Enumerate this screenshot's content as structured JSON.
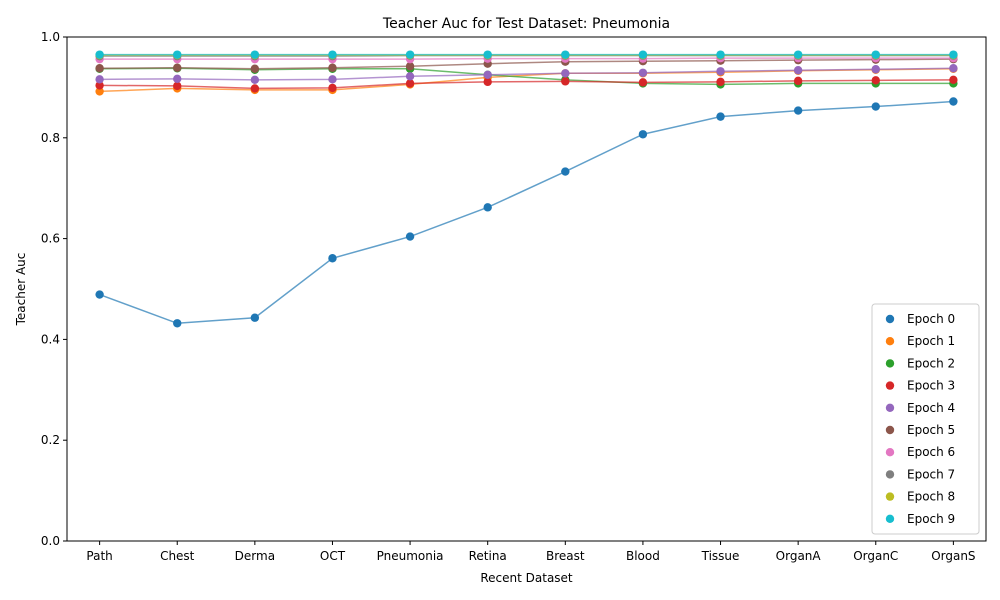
{
  "chart_data": {
    "type": "line",
    "title": "Teacher Auc for Test Dataset: Pneumonia",
    "xlabel": "Recent Dataset",
    "ylabel": "Teacher Auc",
    "ylim": [
      0,
      1.0
    ],
    "yticks": [
      "0.0",
      "0.2",
      "0.4",
      "0.6",
      "0.8",
      "1.0"
    ],
    "categories": [
      "Path",
      "Chest",
      "Derma",
      "OCT",
      "Pneumonia",
      "Retina",
      "Breast",
      "Blood",
      "Tissue",
      "OrganA",
      "OrganC",
      "OrganS"
    ],
    "grid": false,
    "legend_position": "lower-right",
    "series": [
      {
        "name": "Epoch 0",
        "color": "#1f77b4",
        "values": [
          0.489,
          0.432,
          0.443,
          0.561,
          0.604,
          0.662,
          0.733,
          0.807,
          0.842,
          0.854,
          0.862,
          0.872
        ]
      },
      {
        "name": "Epoch 1",
        "color": "#ff7f0e",
        "values": [
          0.892,
          0.898,
          0.895,
          0.895,
          0.906,
          0.92,
          0.928,
          0.928,
          0.93,
          0.933,
          0.935,
          0.937
        ]
      },
      {
        "name": "Epoch 2",
        "color": "#2ca02c",
        "values": [
          0.937,
          0.938,
          0.935,
          0.937,
          0.937,
          0.925,
          0.915,
          0.908,
          0.906,
          0.908,
          0.908,
          0.908
        ]
      },
      {
        "name": "Epoch 3",
        "color": "#d62728",
        "values": [
          0.904,
          0.903,
          0.898,
          0.899,
          0.908,
          0.911,
          0.912,
          0.91,
          0.911,
          0.913,
          0.914,
          0.915
        ]
      },
      {
        "name": "Epoch 4",
        "color": "#9467bd",
        "values": [
          0.916,
          0.917,
          0.915,
          0.916,
          0.922,
          0.925,
          0.928,
          0.929,
          0.932,
          0.934,
          0.936,
          0.938
        ]
      },
      {
        "name": "Epoch 5",
        "color": "#8c564b",
        "values": [
          0.938,
          0.939,
          0.937,
          0.939,
          0.942,
          0.947,
          0.951,
          0.952,
          0.953,
          0.954,
          0.955,
          0.956
        ]
      },
      {
        "name": "Epoch 6",
        "color": "#e377c2",
        "values": [
          0.956,
          0.956,
          0.956,
          0.956,
          0.956,
          0.957,
          0.957,
          0.957,
          0.958,
          0.958,
          0.958,
          0.958
        ]
      },
      {
        "name": "Epoch 7",
        "color": "#7f7f7f",
        "values": [
          0.962,
          0.962,
          0.962,
          0.962,
          0.963,
          0.963,
          0.963,
          0.963,
          0.963,
          0.963,
          0.963,
          0.963
        ]
      },
      {
        "name": "Epoch 8",
        "color": "#bcbd22",
        "values": [
          0.964,
          0.964,
          0.964,
          0.964,
          0.964,
          0.964,
          0.964,
          0.964,
          0.964,
          0.964,
          0.964,
          0.964
        ]
      },
      {
        "name": "Epoch 9",
        "color": "#17becf",
        "values": [
          0.965,
          0.965,
          0.965,
          0.965,
          0.965,
          0.965,
          0.965,
          0.965,
          0.965,
          0.965,
          0.965,
          0.965
        ]
      }
    ]
  }
}
